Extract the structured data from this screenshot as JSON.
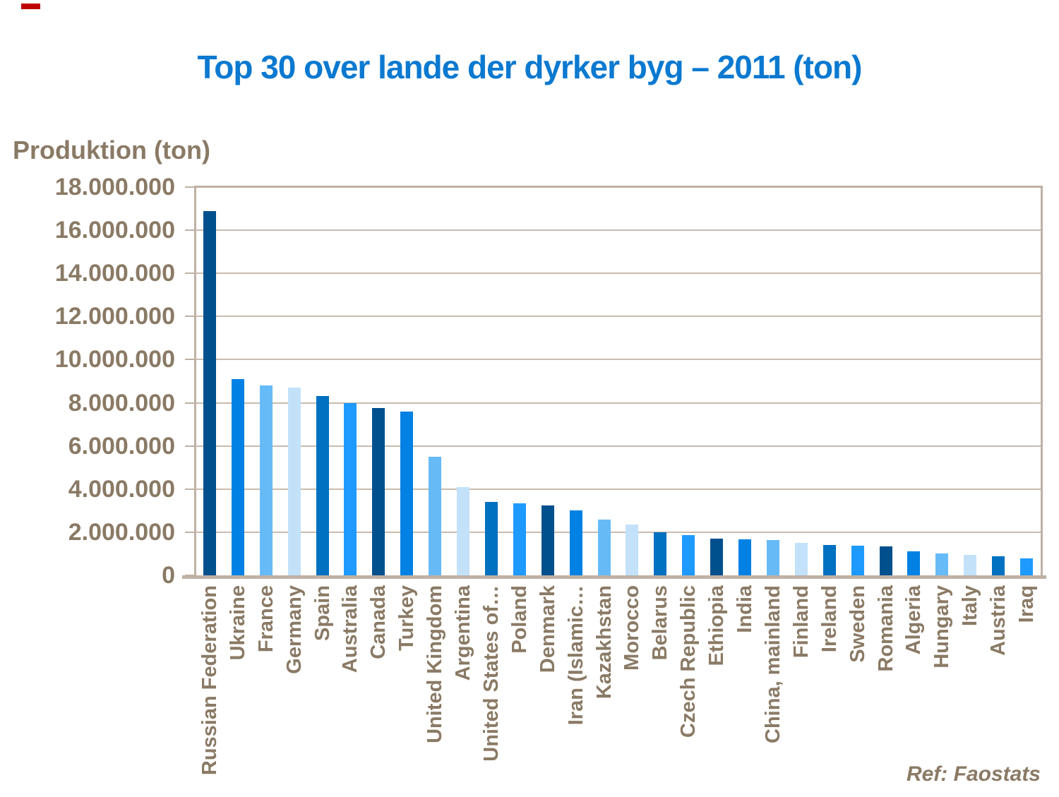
{
  "page": {
    "background": "#FFFFFF"
  },
  "decorations": {
    "red_mark_color": "#C00000"
  },
  "theme": {
    "title_color": "#0B79D0",
    "axis_text_color": "#8A7A65",
    "plot_border_color": "#BEB1A4",
    "gridline_color": "#C9BCAE"
  },
  "chart_data": {
    "type": "bar",
    "title": "Top 30 over lande der dyrker byg – 2011 (ton)",
    "ylabel": "Produktion (ton)",
    "xlabel": "",
    "ylim": [
      0,
      18000000
    ],
    "ytick_step": 2000000,
    "ytick_labels": [
      "0",
      "2.000.000",
      "4.000.000",
      "6.000.000",
      "8.000.000",
      "10.000.000",
      "12.000.000",
      "14.000.000",
      "16.000.000",
      "18.000.000"
    ],
    "grid": true,
    "legend": "none",
    "bar_color_cycle": [
      "#00508E",
      "#0081E3",
      "#66BBF7",
      "#C3E2FA",
      "#0070C0",
      "#1E9AFF"
    ],
    "categories": [
      "Russian Federation",
      "Ukraine",
      "France",
      "Germany",
      "Spain",
      "Australia",
      "Canada",
      "Turkey",
      "United Kingdom",
      "Argentina",
      "United States of…",
      "Poland",
      "Denmark",
      "Iran (Islamic…",
      "Kazakhstan",
      "Morocco",
      "Belarus",
      "Czech Republic",
      "Ethiopia",
      "India",
      "China, mainland",
      "Finland",
      "Ireland",
      "Sweden",
      "Romania",
      "Algeria",
      "Hungary",
      "Italy",
      "Austria",
      "Iraq"
    ],
    "values": [
      16900000,
      9100000,
      8800000,
      8700000,
      8300000,
      8000000,
      7750000,
      7600000,
      5500000,
      4100000,
      3400000,
      3330000,
      3250000,
      3000000,
      2600000,
      2340000,
      2000000,
      1870000,
      1700000,
      1660000,
      1620000,
      1520000,
      1420000,
      1380000,
      1330000,
      1100000,
      1000000,
      960000,
      870000,
      800000
    ]
  },
  "footer": {
    "ref_label": "Ref: Faostats"
  }
}
